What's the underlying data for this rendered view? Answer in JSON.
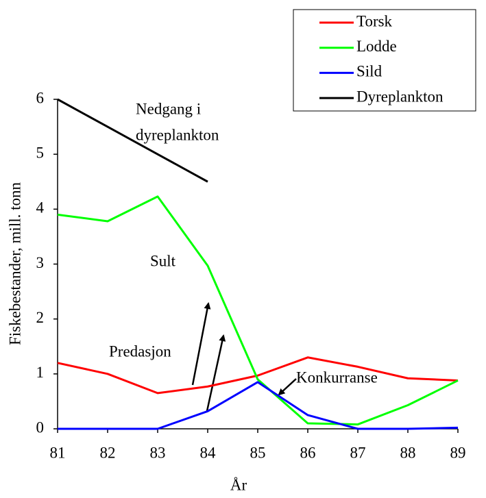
{
  "chart_data": {
    "type": "line",
    "x": [
      81,
      82,
      83,
      84,
      85,
      86,
      87,
      88,
      89
    ],
    "xlim": [
      81,
      89
    ],
    "xticks": [
      81,
      82,
      83,
      84,
      85,
      86,
      87,
      88,
      89
    ],
    "ylim": [
      0,
      6
    ],
    "yticks": [
      0,
      1,
      2,
      3,
      4,
      5,
      6
    ],
    "xlabel": "År",
    "ylabel": "Fiskebestander, mill. tonn",
    "grid": false,
    "legend": "upper right",
    "series": [
      {
        "name": "Torsk",
        "color": "#ff0000",
        "values": [
          1.2,
          1.0,
          0.65,
          0.77,
          0.97,
          1.3,
          1.13,
          0.92,
          0.88
        ]
      },
      {
        "name": "Lodde",
        "color": "#00ff00",
        "values": [
          3.9,
          3.78,
          4.23,
          2.97,
          0.9,
          0.1,
          0.08,
          0.43,
          0.88
        ]
      },
      {
        "name": "Sild",
        "color": "#0000ff",
        "values": [
          0,
          0,
          0,
          0.32,
          0.85,
          0.25,
          0,
          0,
          0.02
        ]
      },
      {
        "name": "Dyreplankton",
        "color": "#000000",
        "values": [
          6,
          5.5,
          5,
          4.5,
          null,
          null,
          null,
          null,
          null
        ]
      }
    ],
    "annotations": [
      "Nedgang i",
      "dyreplankton",
      "Sult",
      "Predasjon",
      "Konkurranse"
    ]
  }
}
